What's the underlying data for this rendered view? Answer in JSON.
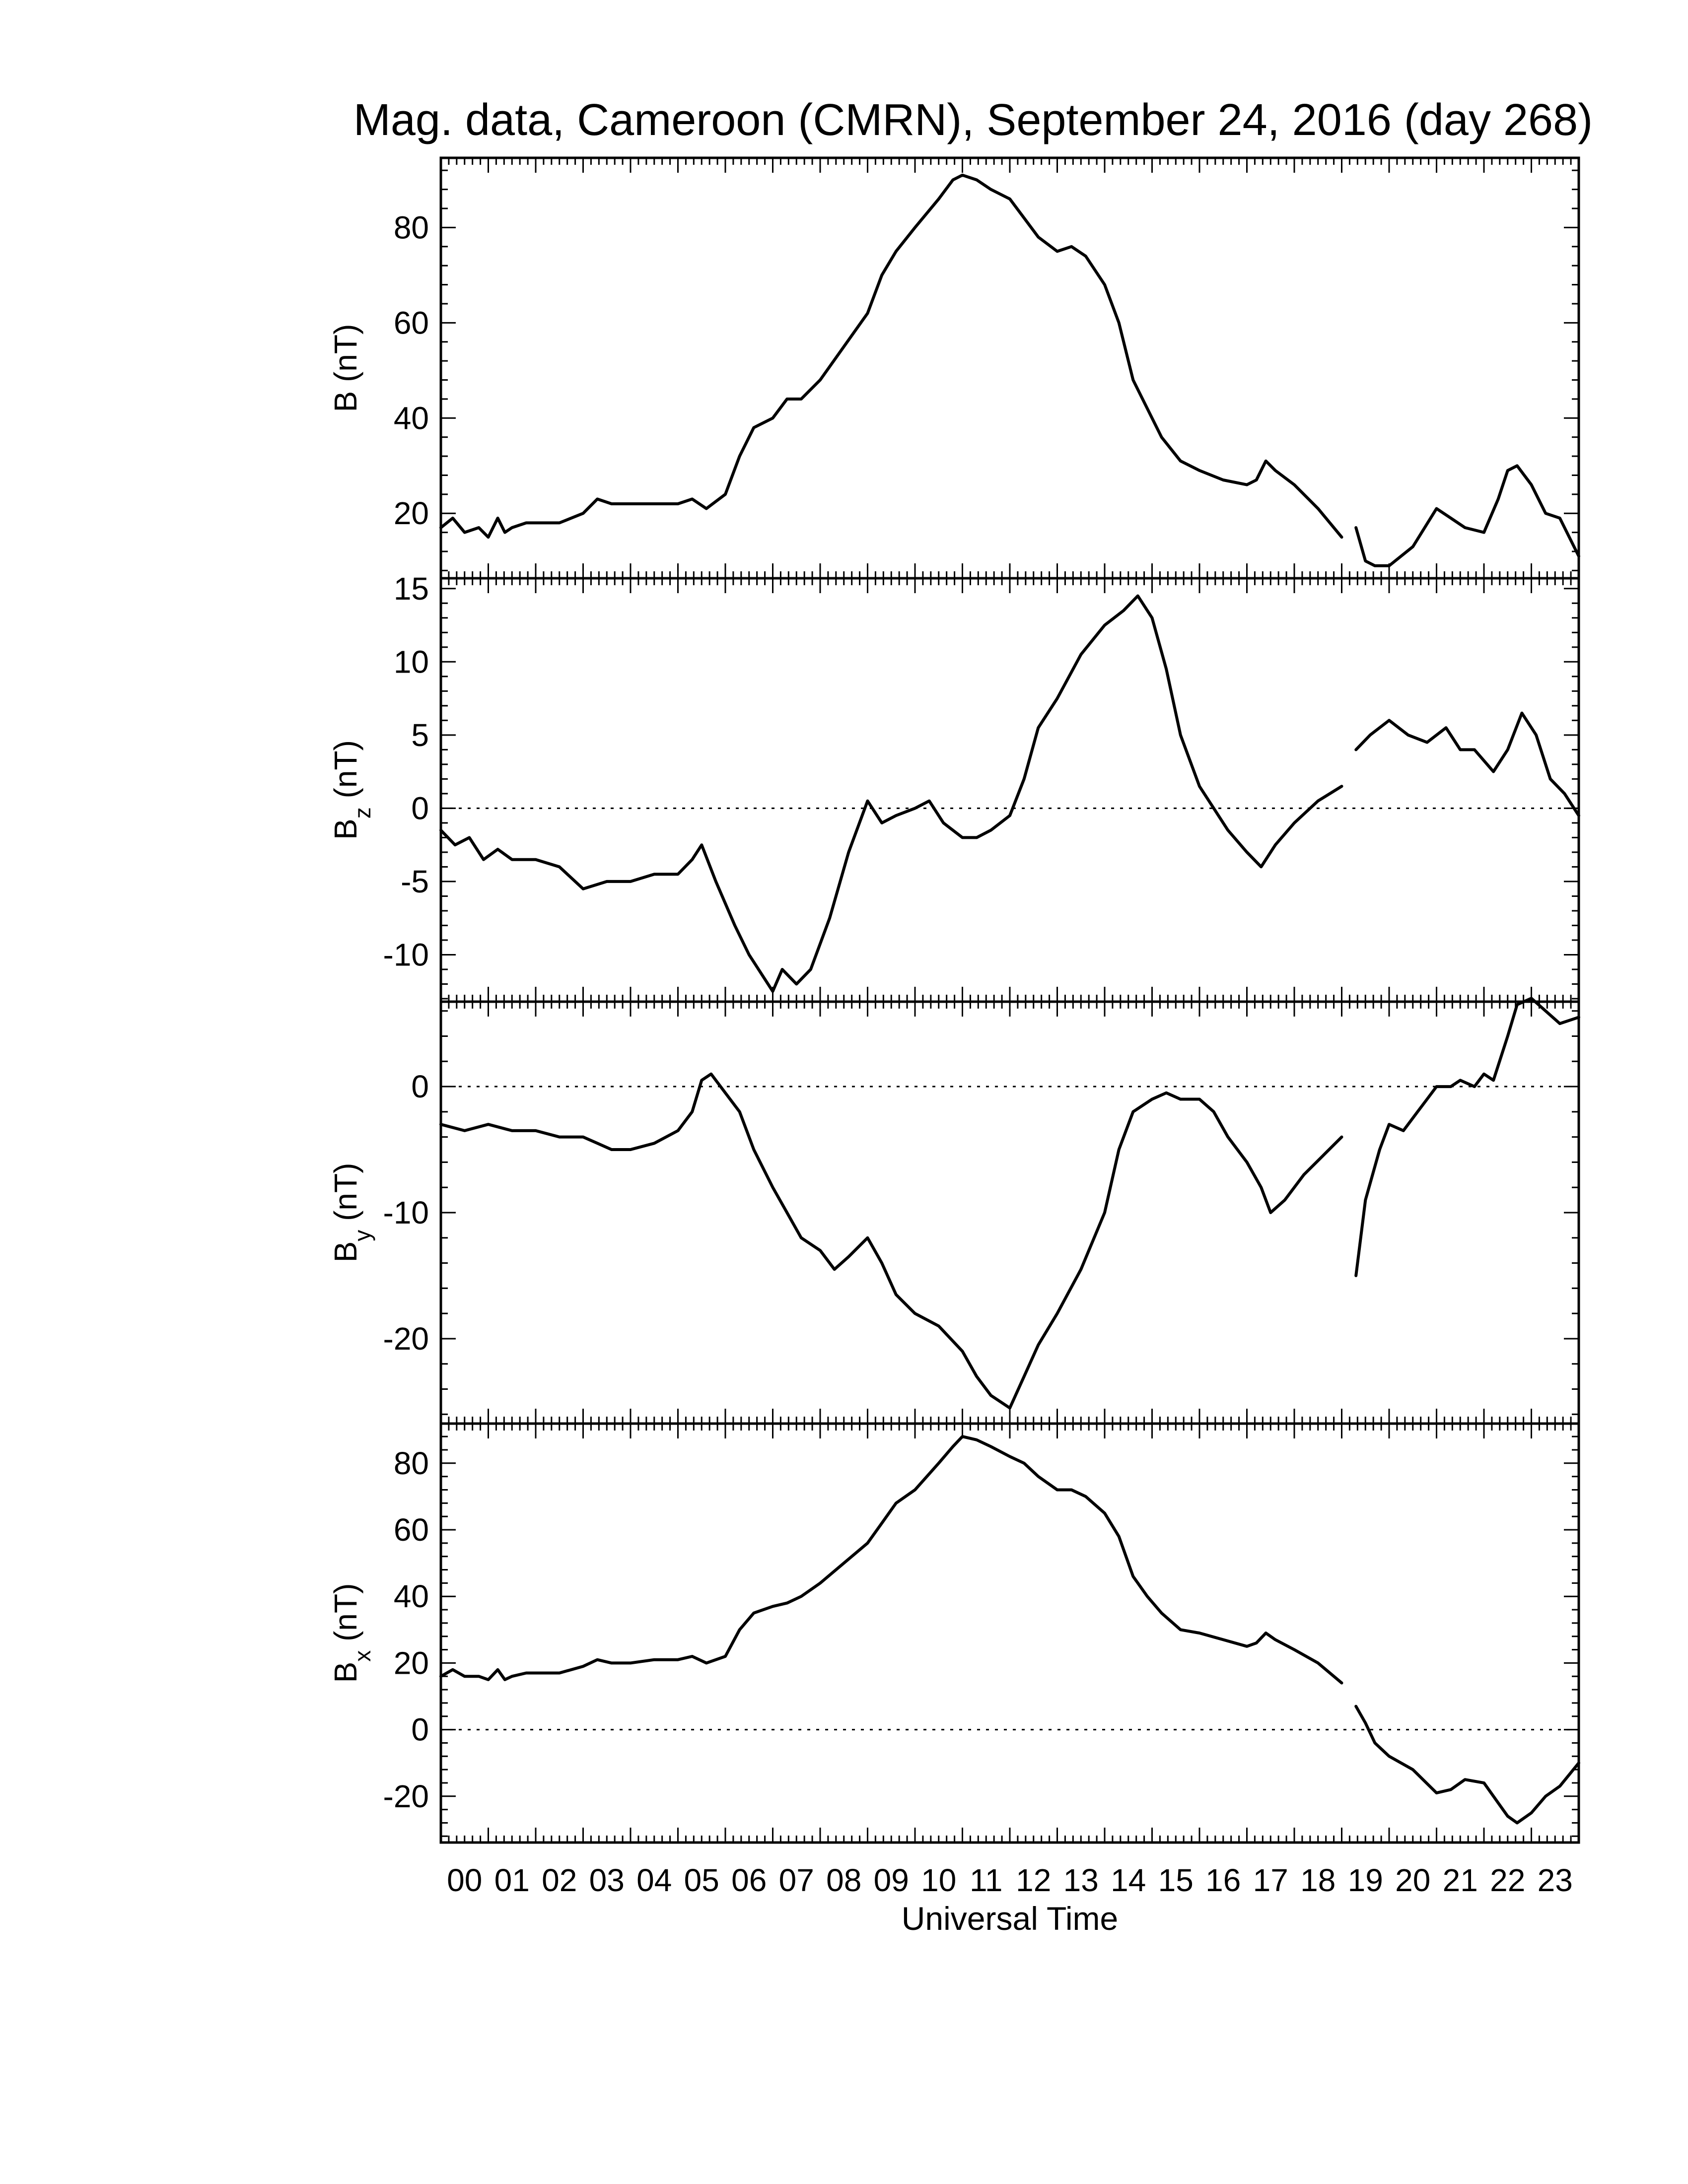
{
  "chart_data": {
    "title": "Mag. data, Cameroon (CMRN), September 24, 2016 (day 268)",
    "xlabel": "Universal Time",
    "x_tick_labels": [
      "00",
      "01",
      "02",
      "03",
      "04",
      "05",
      "06",
      "07",
      "08",
      "09",
      "10",
      "11",
      "12",
      "13",
      "14",
      "15",
      "16",
      "17",
      "18",
      "19",
      "20",
      "21",
      "22",
      "23"
    ],
    "xlim": [
      0,
      24
    ],
    "grid": false,
    "panels": [
      {
        "type": "line",
        "ylabel": "B (nT)",
        "ylabel_base": "B",
        "ylabel_sub": "",
        "ylabel_unit": " (nT)",
        "ylim": [
          7,
          94
        ],
        "yticks": [
          20,
          40,
          60,
          80
        ],
        "ytick_labels": [
          "20",
          "40",
          "60",
          "80"
        ],
        "zero_line": false,
        "segments": [
          {
            "x": [
              0,
              0.25,
              0.5,
              0.8,
              1.0,
              1.2,
              1.35,
              1.5,
              1.8,
              2.0,
              2.5,
              3.0,
              3.3,
              3.6,
              4.0,
              4.5,
              5.0,
              5.3,
              5.6,
              6.0,
              6.3,
              6.6,
              7.0,
              7.3,
              7.6,
              8.0,
              8.5,
              9.0,
              9.3,
              9.6,
              10.0,
              10.5,
              10.8,
              11.0,
              11.3,
              11.6,
              12.0,
              12.3,
              12.6,
              13.0,
              13.3,
              13.6,
              14.0,
              14.3,
              14.6,
              14.9,
              15.2,
              15.6,
              16.0,
              16.5,
              17.0,
              17.2,
              17.4,
              17.6,
              18.0,
              18.5,
              19.0
            ],
            "y": [
              17,
              19,
              16,
              17,
              15,
              19,
              16,
              17,
              18,
              18,
              18,
              20,
              23,
              22,
              22,
              22,
              22,
              23,
              21,
              24,
              32,
              38,
              40,
              44,
              44,
              48,
              55,
              62,
              70,
              75,
              80,
              86,
              90,
              91,
              90,
              88,
              86,
              82,
              78,
              75,
              76,
              74,
              68,
              60,
              48,
              42,
              36,
              31,
              29,
              27,
              26,
              27,
              31,
              29,
              26,
              21,
              15
            ]
          },
          {
            "x": [
              19.3,
              19.5,
              19.7,
              20.0,
              20.5,
              21.0,
              21.3,
              21.6,
              22.0,
              22.3,
              22.5,
              22.7,
              23.0,
              23.3,
              23.6,
              24.0
            ],
            "y": [
              17,
              10,
              9,
              9,
              13,
              21,
              19,
              17,
              16,
              23,
              29,
              30,
              26,
              20,
              19,
              11
            ]
          }
        ]
      },
      {
        "type": "line",
        "ylabel": "Bz (nT)",
        "ylabel_base": "B",
        "ylabel_sub": "z",
        "ylabel_unit": " (nT)",
        "ylim": [
          -13,
          15.5
        ],
        "yticks": [
          -10,
          -5,
          0,
          5,
          10,
          15
        ],
        "ytick_labels": [
          "-10",
          "-5",
          "0",
          "5",
          "10",
          "15"
        ],
        "zero_line": true,
        "segments": [
          {
            "x": [
              0,
              0.3,
              0.6,
              0.9,
              1.2,
              1.5,
              2.0,
              2.5,
              3.0,
              3.5,
              4.0,
              4.5,
              5.0,
              5.3,
              5.5,
              5.8,
              6.2,
              6.5,
              6.8,
              7.0,
              7.2,
              7.5,
              7.8,
              8.2,
              8.6,
              9.0,
              9.3,
              9.6,
              10.0,
              10.3,
              10.6,
              11.0,
              11.3,
              11.6,
              12.0,
              12.3,
              12.6,
              13.0,
              13.5,
              14.0,
              14.4,
              14.7,
              15.0,
              15.3,
              15.6,
              16.0,
              16.3,
              16.6,
              17.0,
              17.3,
              17.6,
              18.0,
              18.5,
              19.0
            ],
            "y": [
              -1.5,
              -2.5,
              -2,
              -3.5,
              -2.8,
              -3.5,
              -3.5,
              -4,
              -5.5,
              -5,
              -5,
              -4.5,
              -4.5,
              -3.5,
              -2.5,
              -5,
              -8,
              -10,
              -11.5,
              -12.5,
              -11,
              -12,
              -11,
              -7.5,
              -3,
              0.5,
              -1,
              -0.5,
              0,
              0.5,
              -1,
              -2,
              -2,
              -1.5,
              -0.5,
              2,
              5.5,
              7.5,
              10.5,
              12.5,
              13.5,
              14.5,
              13,
              9.5,
              5,
              1.5,
              0,
              -1.5,
              -3,
              -4,
              -2.5,
              -1,
              0.5,
              1.5
            ]
          },
          {
            "x": [
              19.3,
              19.6,
              20.0,
              20.4,
              20.8,
              21.2,
              21.5,
              21.8,
              22.2,
              22.5,
              22.8,
              23.1,
              23.4,
              23.7,
              24.0
            ],
            "y": [
              4,
              5,
              6,
              5,
              4.5,
              5.5,
              4,
              4,
              2.5,
              4,
              6.5,
              5,
              2,
              1,
              -0.5
            ]
          }
        ]
      },
      {
        "type": "line",
        "ylabel": "By (nT)",
        "ylabel_base": "B",
        "ylabel_sub": "y",
        "ylabel_unit": " (nT)",
        "ylim": [
          -26.5,
          6.5
        ],
        "yticks": [
          -20,
          -10,
          0
        ],
        "ytick_labels": [
          "-20",
          "-10",
          "0"
        ],
        "zero_line": true,
        "segments": [
          {
            "x": [
              0,
              0.5,
              1.0,
              1.5,
              2.0,
              2.5,
              3.0,
              3.3,
              3.6,
              4.0,
              4.5,
              5.0,
              5.3,
              5.5,
              5.7,
              6.0,
              6.3,
              6.6,
              7.0,
              7.3,
              7.6,
              8.0,
              8.3,
              8.6,
              9.0,
              9.3,
              9.6,
              10.0,
              10.5,
              11.0,
              11.3,
              11.6,
              12.0,
              12.3,
              12.6,
              13.0,
              13.5,
              14.0,
              14.3,
              14.6,
              15.0,
              15.3,
              15.6,
              16.0,
              16.3,
              16.6,
              17.0,
              17.3,
              17.5,
              17.8,
              18.2,
              18.6,
              19.0
            ],
            "y": [
              -3,
              -3.5,
              -3,
              -3.5,
              -3.5,
              -4,
              -4,
              -4.5,
              -5,
              -5,
              -4.5,
              -3.5,
              -2,
              0.5,
              1,
              -0.5,
              -2,
              -5,
              -8,
              -10,
              -12,
              -13,
              -14.5,
              -13.5,
              -12,
              -14,
              -16.5,
              -18,
              -19,
              -21,
              -23,
              -24.5,
              -25.5,
              -23,
              -20.5,
              -18,
              -14.5,
              -10,
              -5,
              -2,
              -1,
              -0.5,
              -1,
              -1,
              -2,
              -4,
              -6,
              -8,
              -10,
              -9,
              -7,
              -5.5,
              -4
            ]
          },
          {
            "x": [
              19.3,
              19.5,
              19.8,
              20.0,
              20.3,
              20.6,
              20.8,
              21.0,
              21.3,
              21.5,
              21.8,
              22.0,
              22.2,
              22.5,
              22.7,
              23.0,
              23.3,
              23.6,
              24.0
            ],
            "y": [
              -15,
              -9,
              -5,
              -3,
              -3.5,
              -2,
              -1,
              0,
              0,
              0.5,
              0,
              1,
              0.5,
              4,
              6.5,
              7,
              6,
              5,
              5.5
            ]
          }
        ]
      },
      {
        "type": "line",
        "ylabel": "Bx (nT)",
        "ylabel_base": "B",
        "ylabel_sub": "x",
        "ylabel_unit": " (nT)",
        "ylim": [
          -33,
          91
        ],
        "yticks": [
          -20,
          0,
          20,
          40,
          60,
          80
        ],
        "ytick_labels": [
          "-20",
          "0",
          "20",
          "40",
          "60",
          "80"
        ],
        "zero_line": true,
        "segments": [
          {
            "x": [
              0,
              0.25,
              0.5,
              0.8,
              1.0,
              1.2,
              1.35,
              1.5,
              1.8,
              2.0,
              2.5,
              3.0,
              3.3,
              3.6,
              4.0,
              4.5,
              5.0,
              5.3,
              5.6,
              6.0,
              6.3,
              6.6,
              7.0,
              7.3,
              7.6,
              8.0,
              8.5,
              9.0,
              9.3,
              9.6,
              10.0,
              10.5,
              10.8,
              11.0,
              11.3,
              11.6,
              12.0,
              12.3,
              12.6,
              13.0,
              13.3,
              13.6,
              14.0,
              14.3,
              14.6,
              14.9,
              15.2,
              15.6,
              16.0,
              16.5,
              17.0,
              17.2,
              17.4,
              17.6,
              18.0,
              18.5,
              19.0
            ],
            "y": [
              16,
              18,
              16,
              16,
              15,
              18,
              15,
              16,
              17,
              17,
              17,
              19,
              21,
              20,
              20,
              21,
              21,
              22,
              20,
              22,
              30,
              35,
              37,
              38,
              40,
              44,
              50,
              56,
              62,
              68,
              72,
              80,
              85,
              88,
              87,
              85,
              82,
              80,
              76,
              72,
              72,
              70,
              65,
              58,
              46,
              40,
              35,
              30,
              29,
              27,
              25,
              26,
              29,
              27,
              24,
              20,
              14
            ]
          },
          {
            "x": [
              19.3,
              19.5,
              19.7,
              20.0,
              20.5,
              21.0,
              21.3,
              21.6,
              22.0,
              22.3,
              22.5,
              22.7,
              23.0,
              23.3,
              23.6,
              24.0
            ],
            "y": [
              7,
              2,
              -4,
              -8,
              -12,
              -19,
              -18,
              -15,
              -16,
              -22,
              -26,
              -28,
              -25,
              -20,
              -17,
              -10
            ]
          }
        ]
      }
    ]
  }
}
